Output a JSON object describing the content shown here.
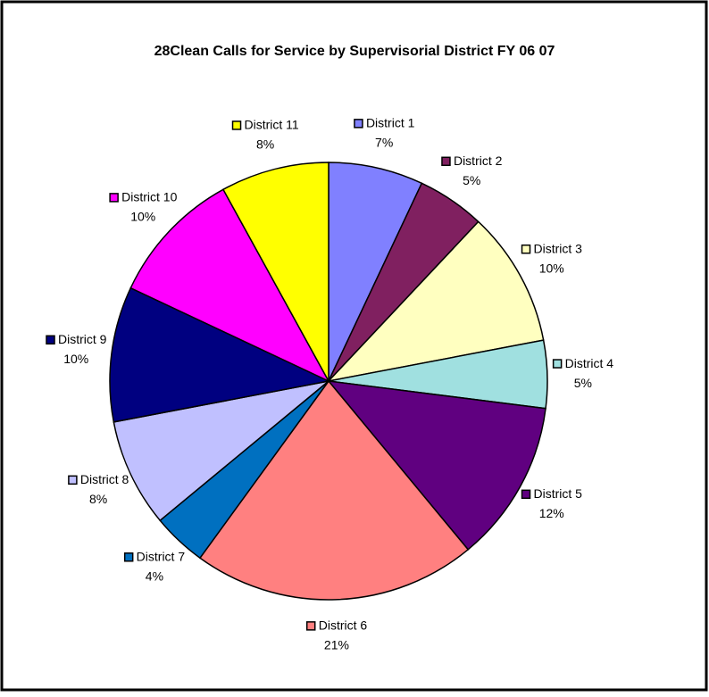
{
  "chart_data": {
    "type": "pie",
    "title": "28Clean Calls for Service by Supervisorial District FY 06 07",
    "categories": [
      "District 1",
      "District 2",
      "District 3",
      "District 4",
      "District 5",
      "District 6",
      "District 7",
      "District 8",
      "District 9",
      "District 10",
      "District 11"
    ],
    "values": [
      7,
      5,
      10,
      5,
      12,
      21,
      4,
      8,
      10,
      10,
      8
    ],
    "value_labels": [
      "7%",
      "5%",
      "10%",
      "5%",
      "12%",
      "21%",
      "4%",
      "8%",
      "10%",
      "10%",
      "8%"
    ],
    "colors": [
      "#8080ff",
      "#802060",
      "#ffffc0",
      "#a0e0e0",
      "#600080",
      "#ff8080",
      "#0070c0",
      "#c0c0ff",
      "#000080",
      "#ff00ff",
      "#ffff00"
    ]
  }
}
